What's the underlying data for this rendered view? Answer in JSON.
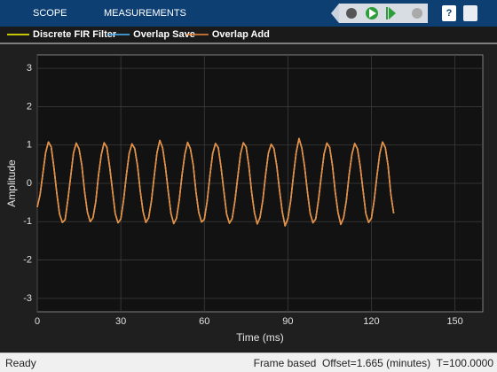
{
  "toolbar": {
    "tabs": [
      "SCOPE",
      "MEASUREMENTS"
    ]
  },
  "chart_data": {
    "type": "line",
    "xlabel": "Time (ms)",
    "ylabel": "Amplitude",
    "x": [
      0,
      1,
      2,
      3,
      4,
      5,
      6,
      7,
      8,
      9,
      10,
      11,
      12,
      13,
      14,
      15,
      16,
      17,
      18,
      19,
      20,
      21,
      22,
      23,
      24,
      25,
      26,
      27,
      28,
      29,
      30,
      31,
      32,
      33,
      34,
      35,
      36,
      37,
      38,
      39,
      40,
      41,
      42,
      43,
      44,
      45,
      46,
      47,
      48,
      49,
      50,
      51,
      52,
      53,
      54,
      55,
      56,
      57,
      58,
      59,
      60,
      61,
      62,
      63,
      64,
      65,
      66,
      67,
      68,
      69,
      70,
      71,
      72,
      73,
      74,
      75,
      76,
      77,
      78,
      79,
      80,
      81,
      82,
      83,
      84,
      85,
      86,
      87,
      88,
      89,
      90,
      91,
      92,
      93,
      94,
      95,
      96,
      97,
      98,
      99,
      100,
      101,
      102,
      103,
      104,
      105,
      106,
      107,
      108,
      109,
      110,
      111,
      112,
      113,
      114,
      115,
      116,
      117,
      118,
      119,
      120,
      121,
      122,
      123,
      124,
      125,
      126,
      127,
      128
    ],
    "series": [
      {
        "name": "Discrete FIR Filter",
        "color": "#ffff00",
        "values": [
          -0.62,
          -0.3,
          0.25,
          0.8,
          1.08,
          0.95,
          0.4,
          -0.25,
          -0.8,
          -1.02,
          -0.95,
          -0.42,
          0.18,
          0.79,
          1.05,
          0.9,
          0.47,
          -0.22,
          -0.75,
          -1.0,
          -0.9,
          -0.48,
          0.22,
          0.75,
          1.06,
          0.94,
          0.43,
          -0.18,
          -0.79,
          -1.03,
          -0.93,
          -0.44,
          0.21,
          0.78,
          1.03,
          0.91,
          0.46,
          -0.21,
          -0.74,
          -1.02,
          -0.9,
          -0.46,
          0.19,
          0.8,
          1.12,
          0.93,
          0.44,
          -0.19,
          -0.78,
          -1.05,
          -0.91,
          -0.43,
          0.23,
          0.76,
          1.07,
          0.9,
          0.48,
          -0.23,
          -0.76,
          -1.01,
          -0.94,
          -0.47,
          0.2,
          0.78,
          1.04,
          0.93,
          0.42,
          -0.2,
          -0.8,
          -1.04,
          -0.92,
          -0.45,
          0.17,
          0.77,
          1.06,
          0.95,
          0.45,
          -0.24,
          -0.77,
          -1.06,
          -0.89,
          -0.44,
          0.22,
          0.79,
          1.02,
          0.91,
          0.46,
          -0.18,
          -0.75,
          -1.11,
          -0.92,
          -0.46,
          0.21,
          0.81,
          1.17,
          0.92,
          0.44,
          -0.21,
          -0.78,
          -1.03,
          -0.93,
          -0.43,
          0.19,
          0.77,
          1.05,
          0.94,
          0.47,
          -0.22,
          -0.76,
          -1.07,
          -0.9,
          -0.45,
          0.23,
          0.76,
          1.04,
          0.9,
          0.43,
          -0.19,
          -0.79,
          -1.02,
          -0.91,
          -0.44,
          0.2,
          0.78,
          1.08,
          0.93,
          0.45,
          -0.3,
          -0.78
        ]
      },
      {
        "name": "Overlap Save",
        "color": "#4db8ff",
        "values": [
          -0.62,
          -0.3,
          0.25,
          0.8,
          1.08,
          0.95,
          0.4,
          -0.25,
          -0.8,
          -1.02,
          -0.95,
          -0.42,
          0.18,
          0.79,
          1.05,
          0.9,
          0.47,
          -0.22,
          -0.75,
          -1.0,
          -0.9,
          -0.48,
          0.22,
          0.75,
          1.06,
          0.94,
          0.43,
          -0.18,
          -0.79,
          -1.03,
          -0.93,
          -0.44,
          0.21,
          0.78,
          1.03,
          0.91,
          0.46,
          -0.21,
          -0.74,
          -1.02,
          -0.9,
          -0.46,
          0.19,
          0.8,
          1.12,
          0.93,
          0.44,
          -0.19,
          -0.78,
          -1.05,
          -0.91,
          -0.43,
          0.23,
          0.76,
          1.07,
          0.9,
          0.48,
          -0.23,
          -0.76,
          -1.01,
          -0.94,
          -0.47,
          0.2,
          0.78,
          1.04,
          0.93,
          0.42,
          -0.2,
          -0.8,
          -1.04,
          -0.92,
          -0.45,
          0.17,
          0.77,
          1.06,
          0.95,
          0.45,
          -0.24,
          -0.77,
          -1.06,
          -0.89,
          -0.44,
          0.22,
          0.79,
          1.02,
          0.91,
          0.46,
          -0.18,
          -0.75,
          -1.11,
          -0.92,
          -0.46,
          0.21,
          0.81,
          1.17,
          0.92,
          0.44,
          -0.21,
          -0.78,
          -1.03,
          -0.93,
          -0.43,
          0.19,
          0.77,
          1.05,
          0.94,
          0.47,
          -0.22,
          -0.76,
          -1.07,
          -0.9,
          -0.45,
          0.23,
          0.76,
          1.04,
          0.9,
          0.43,
          -0.19,
          -0.79,
          -1.02,
          -0.91,
          -0.44,
          0.2,
          0.78,
          1.08,
          0.93,
          0.45,
          -0.3,
          -0.78
        ]
      },
      {
        "name": "Overlap Add",
        "color": "#f08a3c",
        "values": [
          -0.62,
          -0.3,
          0.25,
          0.8,
          1.08,
          0.95,
          0.4,
          -0.25,
          -0.8,
          -1.02,
          -0.95,
          -0.42,
          0.18,
          0.79,
          1.05,
          0.9,
          0.47,
          -0.22,
          -0.75,
          -1.0,
          -0.9,
          -0.48,
          0.22,
          0.75,
          1.06,
          0.94,
          0.43,
          -0.18,
          -0.79,
          -1.03,
          -0.93,
          -0.44,
          0.21,
          0.78,
          1.03,
          0.91,
          0.46,
          -0.21,
          -0.74,
          -1.02,
          -0.9,
          -0.46,
          0.19,
          0.8,
          1.12,
          0.93,
          0.44,
          -0.19,
          -0.78,
          -1.05,
          -0.91,
          -0.43,
          0.23,
          0.76,
          1.07,
          0.9,
          0.48,
          -0.23,
          -0.76,
          -1.01,
          -0.94,
          -0.47,
          0.2,
          0.78,
          1.04,
          0.93,
          0.42,
          -0.2,
          -0.8,
          -1.04,
          -0.92,
          -0.45,
          0.17,
          0.77,
          1.06,
          0.95,
          0.45,
          -0.24,
          -0.77,
          -1.06,
          -0.89,
          -0.44,
          0.22,
          0.79,
          1.02,
          0.91,
          0.46,
          -0.18,
          -0.75,
          -1.11,
          -0.92,
          -0.46,
          0.21,
          0.81,
          1.17,
          0.92,
          0.44,
          -0.21,
          -0.78,
          -1.03,
          -0.93,
          -0.43,
          0.19,
          0.77,
          1.05,
          0.94,
          0.47,
          -0.22,
          -0.76,
          -1.07,
          -0.9,
          -0.45,
          0.23,
          0.76,
          1.04,
          0.9,
          0.43,
          -0.19,
          -0.79,
          -1.02,
          -0.91,
          -0.44,
          0.2,
          0.78,
          1.08,
          0.93,
          0.45,
          -0.3,
          -0.78
        ]
      }
    ],
    "xlim": [
      0,
      160
    ],
    "ylim": [
      -3.35,
      3.35
    ],
    "xticks": [
      0,
      30,
      60,
      90,
      120,
      150
    ],
    "yticks": [
      -3,
      -2,
      -1,
      0,
      1,
      2,
      3
    ],
    "grid": true
  },
  "status": {
    "left": "Ready",
    "right": "Frame based  Offset=1.665 (minutes)  T=100.0000"
  }
}
